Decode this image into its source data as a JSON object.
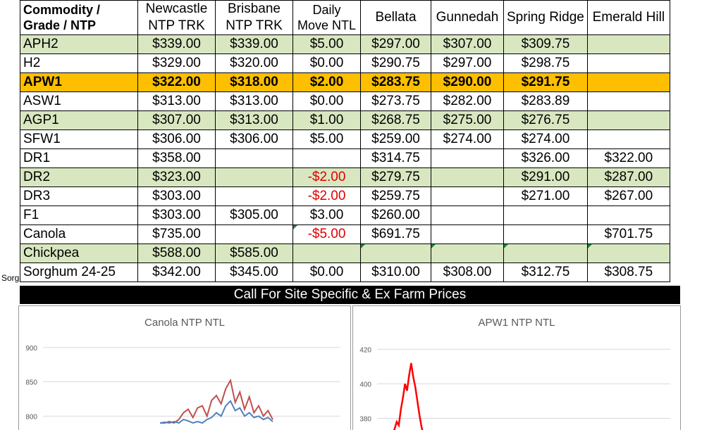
{
  "table": {
    "headers": [
      "Commodity /\nGrade / NTP",
      "Newcastle\nNTP TRK",
      "Brisbane\nNTP TRK",
      "Daily\nMove NTL",
      "Bellata",
      "Gunnedah",
      "Spring Ridge",
      "Emerald Hill"
    ],
    "rows": [
      {
        "cells": [
          "APH2",
          "$339.00",
          "$339.00",
          "$5.00",
          "$297.00",
          "$307.00",
          "$309.75",
          ""
        ],
        "style": "green"
      },
      {
        "cells": [
          "H2",
          "$329.00",
          "$320.00",
          "$0.00",
          "$290.75",
          "$297.00",
          "$298.75",
          ""
        ],
        "style": "white"
      },
      {
        "cells": [
          "APW1",
          "$322.00",
          "$318.00",
          "$2.00",
          "$283.75",
          "$290.00",
          "$291.75",
          ""
        ],
        "style": "orange"
      },
      {
        "cells": [
          "ASW1",
          "$313.00",
          "$313.00",
          "$0.00",
          "$273.75",
          "$282.00",
          "$283.89",
          ""
        ],
        "style": "white"
      },
      {
        "cells": [
          "AGP1",
          "$307.00",
          "$313.00",
          "$1.00",
          "$268.75",
          "$275.00",
          "$276.75",
          ""
        ],
        "style": "green"
      },
      {
        "cells": [
          "SFW1",
          "$306.00",
          "$306.00",
          "$5.00",
          "$259.00",
          "$274.00",
          "$274.00",
          ""
        ],
        "style": "white"
      },
      {
        "cells": [
          "DR1",
          "$358.00",
          "",
          "",
          "$314.75",
          "",
          "$326.00",
          "$322.00"
        ],
        "style": "white"
      },
      {
        "cells": [
          "DR2",
          "$323.00",
          "",
          "-$2.00",
          "$279.75",
          "",
          "$291.00",
          "$287.00"
        ],
        "style": "green"
      },
      {
        "cells": [
          "DR3",
          "$303.00",
          "",
          "-$2.00",
          "$259.75",
          "",
          "$271.00",
          "$267.00"
        ],
        "style": "white"
      },
      {
        "cells": [
          "F1",
          "$303.00",
          "$305.00",
          "$3.00",
          "$260.00",
          "",
          "",
          ""
        ],
        "style": "white"
      },
      {
        "cells": [
          "Canola",
          "$735.00",
          "",
          "-$5.00",
          "$691.75",
          "",
          "",
          "$701.75"
        ],
        "style": "white"
      },
      {
        "cells": [
          "Chickpea",
          "$588.00",
          "$585.00",
          "",
          "",
          "",
          "",
          ""
        ],
        "style": "green"
      },
      {
        "cells": [
          "Sorghum 24-25",
          "$342.00",
          "$345.00",
          "$0.00",
          "$310.00",
          "$308.00",
          "$312.75",
          "$308.75"
        ],
        "style": "white"
      }
    ]
  },
  "banner": "Call For Site Specific & Ex Farm Prices",
  "side_fragment": "Sorg",
  "colors": {
    "green": "#d9e7c1",
    "orange": "#fdbf00",
    "negative": "#e00000",
    "series_red": "#c0504d",
    "series_blue": "#4f81bd",
    "apw_red": "#ff0000"
  },
  "chart_data": [
    {
      "type": "line",
      "title": "Canola NTP NTL",
      "ylim": [
        790,
        910
      ],
      "yticks": [
        900,
        850,
        800
      ],
      "series": [
        {
          "values": [
            790,
            790,
            792,
            790,
            795,
            805,
            810,
            798,
            812,
            815,
            800,
            823,
            830,
            818,
            840,
            852,
            820,
            835,
            810,
            828,
            805,
            815,
            800,
            808,
            795
          ]
        },
        {
          "values": [
            790,
            791,
            790,
            792,
            790,
            795,
            793,
            790,
            792,
            790,
            795,
            798,
            805,
            800,
            815,
            822,
            808,
            812,
            800,
            805,
            798,
            800,
            795,
            798,
            792
          ]
        }
      ]
    },
    {
      "type": "line",
      "title": "APW1 NTP NTL",
      "ylim": [
        370,
        425
      ],
      "yticks": [
        420,
        400,
        380
      ],
      "series": [
        {
          "values": [
            370,
            374,
            378,
            376,
            385,
            392,
            400,
            396,
            405,
            412,
            404,
            398,
            390,
            382,
            375,
            370
          ]
        }
      ]
    }
  ]
}
